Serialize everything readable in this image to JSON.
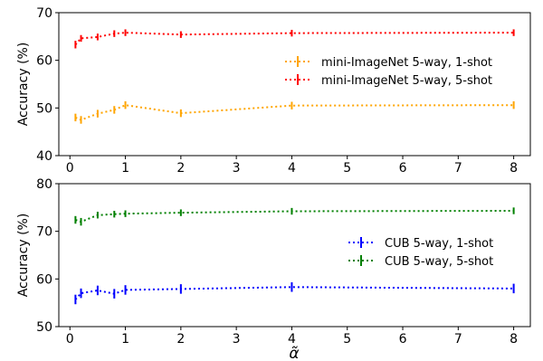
{
  "chart_data": [
    {
      "type": "line",
      "xlabel": "",
      "ylabel": "Accuracy (%)",
      "xlim": [
        -0.2,
        8.3
      ],
      "ylim": [
        40,
        70
      ],
      "xticks": [
        0,
        1,
        2,
        3,
        4,
        5,
        6,
        7,
        8
      ],
      "yticks": [
        40,
        50,
        60,
        70
      ],
      "grid": false,
      "legend_position": "center-right",
      "error_bars": true,
      "series": [
        {
          "name": "mini-ImageNet 5-way, 1-shot",
          "color": "#FFA500",
          "x": [
            0.1,
            0.2,
            0.5,
            0.8,
            1.0,
            2.0,
            4.0,
            8.0
          ],
          "y": [
            48.0,
            47.5,
            48.8,
            49.6,
            50.6,
            48.9,
            50.5,
            50.6
          ],
          "err": [
            0.8,
            0.8,
            0.8,
            0.8,
            0.8,
            0.8,
            0.8,
            0.8
          ]
        },
        {
          "name": "mini-ImageNet 5-way, 5-shot",
          "color": "#FF0000",
          "x": [
            0.1,
            0.2,
            0.5,
            0.8,
            1.0,
            2.0,
            4.0,
            8.0
          ],
          "y": [
            63.3,
            64.6,
            64.9,
            65.6,
            65.8,
            65.4,
            65.7,
            65.8
          ],
          "err": [
            0.8,
            0.7,
            0.7,
            0.7,
            0.7,
            0.7,
            0.7,
            0.7
          ]
        }
      ]
    },
    {
      "type": "line",
      "xlabel": "α̃",
      "ylabel": "Accuracy (%)",
      "xlim": [
        -0.2,
        8.3
      ],
      "ylim": [
        50,
        80
      ],
      "xticks": [
        0,
        1,
        2,
        3,
        4,
        5,
        6,
        7,
        8
      ],
      "yticks": [
        50,
        60,
        70,
        80
      ],
      "grid": false,
      "legend_position": "center-right",
      "error_bars": true,
      "series": [
        {
          "name": "CUB 5-way, 1-shot",
          "color": "#0000FF",
          "x": [
            0.1,
            0.2,
            0.5,
            0.8,
            1.0,
            2.0,
            4.0,
            8.0
          ],
          "y": [
            55.7,
            57.0,
            57.6,
            56.9,
            57.7,
            57.9,
            58.3,
            58.0
          ],
          "err": [
            1.0,
            1.0,
            1.0,
            1.0,
            1.0,
            1.0,
            1.0,
            1.0
          ]
        },
        {
          "name": "CUB 5-way, 5-shot",
          "color": "#008000",
          "x": [
            0.1,
            0.2,
            0.5,
            0.8,
            1.0,
            2.0,
            4.0,
            8.0
          ],
          "y": [
            72.4,
            72.0,
            73.4,
            73.6,
            73.7,
            73.9,
            74.2,
            74.3
          ],
          "err": [
            0.8,
            0.8,
            0.7,
            0.7,
            0.7,
            0.7,
            0.7,
            0.7
          ]
        }
      ]
    }
  ]
}
